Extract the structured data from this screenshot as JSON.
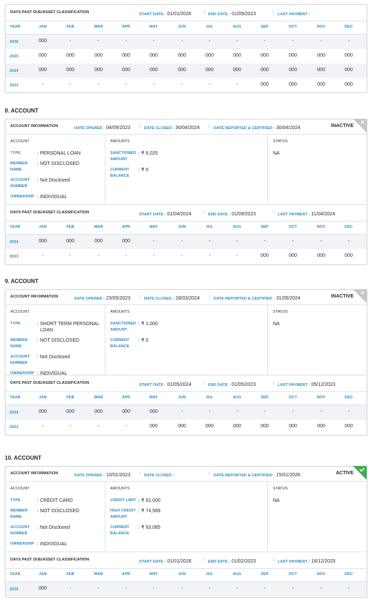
{
  "labels": {
    "dpd_title": "DAYS PAST DUE/ASSET CLASSIFICATION",
    "start_date": "START DATE :",
    "end_date": "END DATE :",
    "last_payment": "LAST PAYMENT :",
    "divider": "|",
    "colon": ":",
    "info_title": "ACCOUNT INFORMATION",
    "date_opened": "DATE OPENED :",
    "date_closed": "DATE CLOSED :",
    "date_reported": "DATE REPORTED & CERTIFIED :",
    "col_account": "ACCOUNT",
    "col_amounts": "AMOUNTS",
    "col_status": "STATUS",
    "type": "TYPE",
    "member_name": "MEMBER NAME",
    "account_number": "ACCOUNT NUMBER",
    "ownership": "OWNERSHIP",
    "year": "YEAR",
    "months": [
      "JAN",
      "FEB",
      "MAR",
      "APR",
      "MAY",
      "JUN",
      "JUL",
      "AUG",
      "SEP",
      "OCT",
      "NOV",
      "DEC"
    ]
  },
  "partial_dpd": {
    "start_date": "01/01/2026",
    "end_date": "01/09/2023",
    "rows": [
      {
        "year": "2026",
        "cells": [
          "000",
          "-",
          "-",
          "-",
          "-",
          "-",
          "-",
          "-",
          "-",
          "-",
          "-",
          "-"
        ]
      },
      {
        "year": "2025",
        "cells": [
          "000",
          "000",
          "000",
          "000",
          "000",
          "000",
          "000",
          "000",
          "000",
          "000",
          "000",
          "000"
        ]
      },
      {
        "year": "2024",
        "cells": [
          "000",
          "000",
          "000",
          "000",
          "000",
          "000",
          "000",
          "000",
          "000",
          "000",
          "000",
          "000"
        ]
      },
      {
        "year": "2023",
        "cells": [
          "-",
          "-",
          "-",
          "-",
          "-",
          "-",
          "-",
          "-",
          "000",
          "000",
          "000",
          "000"
        ]
      }
    ]
  },
  "accounts": [
    {
      "heading": "8. ACCOUNT",
      "date_opened": "04/09/2023",
      "date_closed": "30/04/2024",
      "date_reported": "30/04/2024",
      "status_tag": "INACTIVE",
      "active": false,
      "type": "PERSONAL LOAN",
      "member_name": "NOT DISCLOSED",
      "account_number": "Not Disclosed",
      "ownership": "INDIVIDUAL",
      "amounts": [
        {
          "label": "SANCTIONED AMOUNT",
          "value": "₹ 6,025"
        },
        {
          "label": "CURRENT BALANCE",
          "value": "₹ 0"
        }
      ],
      "status": "NA",
      "dpd": {
        "start_date": "01/04/2024",
        "end_date": "01/09/2023",
        "last_payment": "11/04/2024",
        "rows": [
          {
            "year": "2024",
            "cells": [
              "000",
              "000",
              "000",
              "000",
              "-",
              "-",
              "-",
              "-",
              "-",
              "-",
              "-",
              "-"
            ]
          },
          {
            "year": "2023",
            "cells": [
              "-",
              "-",
              "-",
              "-",
              "-",
              "-",
              "-",
              "-",
              "000",
              "000",
              "000",
              "000"
            ]
          }
        ]
      }
    },
    {
      "heading": "9. ACCOUNT",
      "date_opened": "23/05/2023",
      "date_closed": "28/03/2024",
      "date_reported": "31/05/2024",
      "status_tag": "INACTIVE",
      "active": false,
      "type": "SHORT TERM PERSONAL LOAN",
      "member_name": "NOT DISCLOSED",
      "account_number": "Not Disclosed",
      "ownership": "INDIVIDUAL",
      "amounts": [
        {
          "label": "SANCTIONED AMOUNT",
          "value": "₹ 1,000"
        },
        {
          "label": "CURRENT BALANCE",
          "value": "₹ 0"
        }
      ],
      "status": "NA",
      "dpd": {
        "start_date": "01/05/2024",
        "end_date": "01/05/2023",
        "last_payment": "05/12/2023",
        "rows": [
          {
            "year": "2024",
            "cells": [
              "000",
              "000",
              "000",
              "000",
              "000",
              "-",
              "-",
              "-",
              "-",
              "-",
              "-",
              "-"
            ]
          },
          {
            "year": "2023",
            "cells": [
              "-",
              "-",
              "-",
              "-",
              "000",
              "000",
              "000",
              "000",
              "000",
              "000",
              "000",
              "000"
            ]
          }
        ]
      }
    },
    {
      "heading": "10. ACCOUNT",
      "date_opened": "10/01/2023",
      "date_reported": "15/01/2026",
      "status_tag": "ACTIVE",
      "active": true,
      "type": "CREDIT CARD",
      "member_name": "NOT DISCLOSED",
      "account_number": "Not Disclosed",
      "ownership": "INDIVIDUAL",
      "amounts": [
        {
          "label": "CREDIT LIMIT",
          "value": "₹ 62,000"
        },
        {
          "label": "HIGH CREDIT AMOUNT",
          "value": "₹ 74,589"
        },
        {
          "label": "CURRENT BALANCE",
          "value": "₹ 63,085"
        }
      ],
      "status": "NA",
      "dpd": {
        "start_date": "01/01/2026",
        "end_date": "01/02/2023",
        "last_payment": "16/12/2025",
        "rows": [
          {
            "year": "2026",
            "cells": [
              "000",
              "-",
              "-",
              "-",
              "-",
              "-",
              "-",
              "-",
              "-",
              "-",
              "-",
              "-"
            ]
          }
        ]
      }
    }
  ]
}
